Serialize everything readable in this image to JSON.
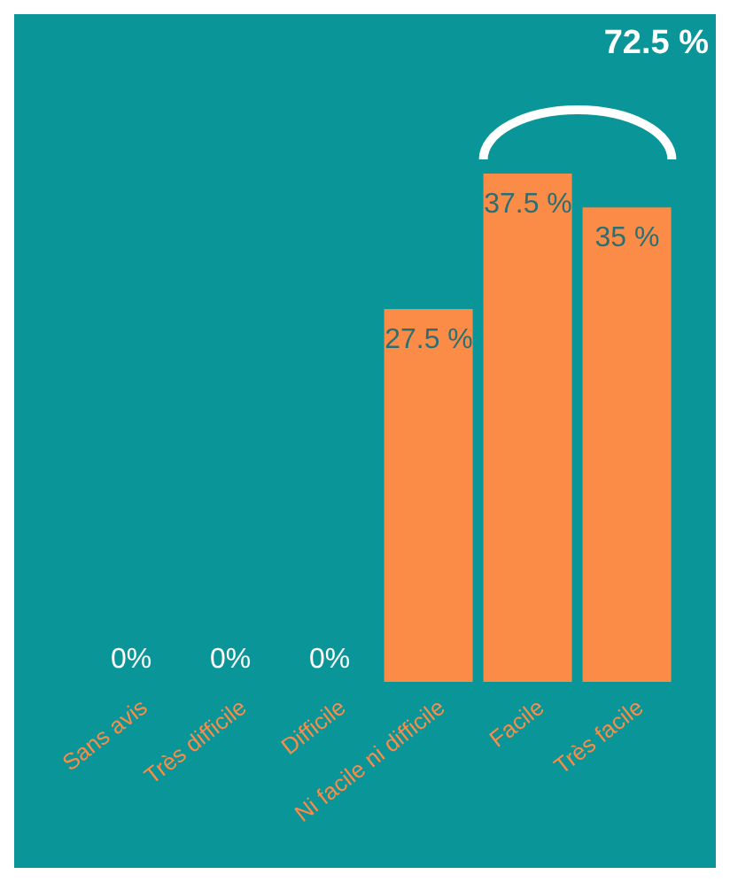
{
  "chart_data": {
    "type": "bar",
    "categories": [
      "Sans avis",
      "Très difficile",
      "Difficile",
      "Ni facile ni difficile",
      "Facile",
      "Très facile"
    ],
    "values": [
      0,
      0,
      0,
      27.5,
      37.5,
      35
    ],
    "value_labels": [
      "0%",
      "0%",
      "0%",
      "27.5 %",
      "37.5 %",
      "35 %"
    ],
    "color": "#fb8c48",
    "annotations": [
      "72.5 %"
    ]
  }
}
